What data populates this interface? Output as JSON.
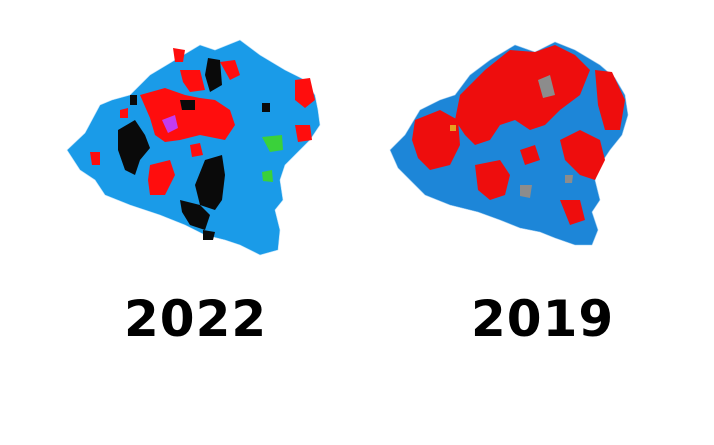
{
  "maps": [
    {
      "label": "2022",
      "colors": {
        "base": "#1a9be8",
        "red": "#ff0d0d",
        "black": "#0a0a0a",
        "purple": "#c33cf0",
        "green": "#3ad13a"
      }
    },
    {
      "label": "2019",
      "colors": {
        "base": "#1d86d8",
        "red": "#ee0d0d",
        "grey": "#8c8c8c",
        "orange": "#e8a020"
      }
    }
  ]
}
